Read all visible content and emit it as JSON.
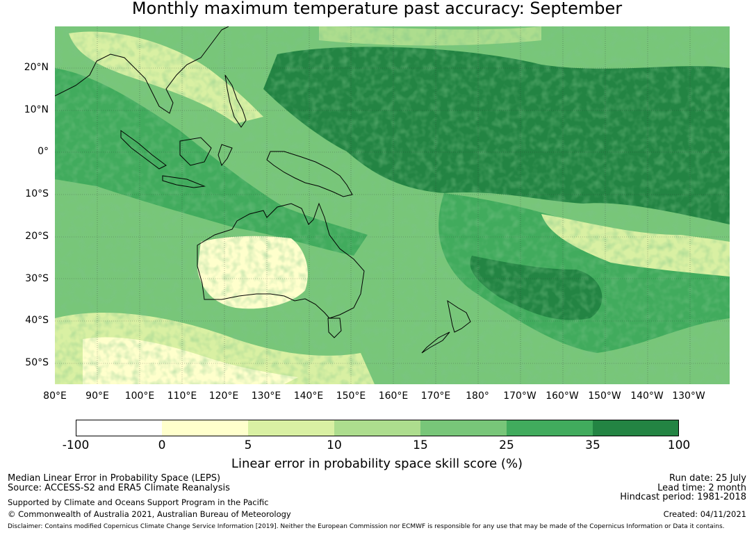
{
  "title": "Monthly maximum temperature past accuracy: September",
  "map": {
    "lat_labels": [
      "20°N",
      "10°N",
      "0°",
      "10°S",
      "20°S",
      "30°S",
      "40°S",
      "50°S"
    ],
    "lon_labels": [
      "80°E",
      "90°E",
      "100°E",
      "110°E",
      "120°E",
      "130°E",
      "140°E",
      "150°E",
      "160°E",
      "170°E",
      "180°",
      "170°W",
      "160°W",
      "150°W",
      "140°W",
      "130°W"
    ],
    "lon_range": [
      "80°E",
      "240°E"
    ],
    "lat_range": [
      "55°S",
      "30°N"
    ],
    "regions": [
      "Australia",
      "New Zealand",
      "Papua New Guinea",
      "Indonesia",
      "Philippines"
    ]
  },
  "colorbar": {
    "ticks": [
      "-100",
      "0",
      "5",
      "10",
      "15",
      "25",
      "35",
      "100"
    ],
    "colors": [
      "#ffffff",
      "#ffffcc",
      "#d9f0a3",
      "#addd8e",
      "#78c679",
      "#41ab5d",
      "#238443"
    ],
    "label": "Linear error in probability space skill score (%)"
  },
  "footer": {
    "line1": "Median Linear Error in Probability Space (LEPS)",
    "line2": "Source: ACCESS-S2 and ERA5 Climate Reanalysis",
    "line3": "Supported by Climate and Oceans Support Program in the Pacific",
    "line4": "© Commonwealth of Australia 2021, Australian Bureau of Meteorology",
    "run_date": "Run date: 25 July",
    "lead_time": "Lead time: 2 month",
    "hindcast": "Hindcast period: 1981-2018",
    "created": "Created: 04/11/2021",
    "disclaimer": "Disclaimer: Contains modified Copernicus Climate Change Service Information [2019]. Neither the European Commission nor ECMWF is responsible for any use that may be made of the Copernicus Information or Data it contains."
  }
}
